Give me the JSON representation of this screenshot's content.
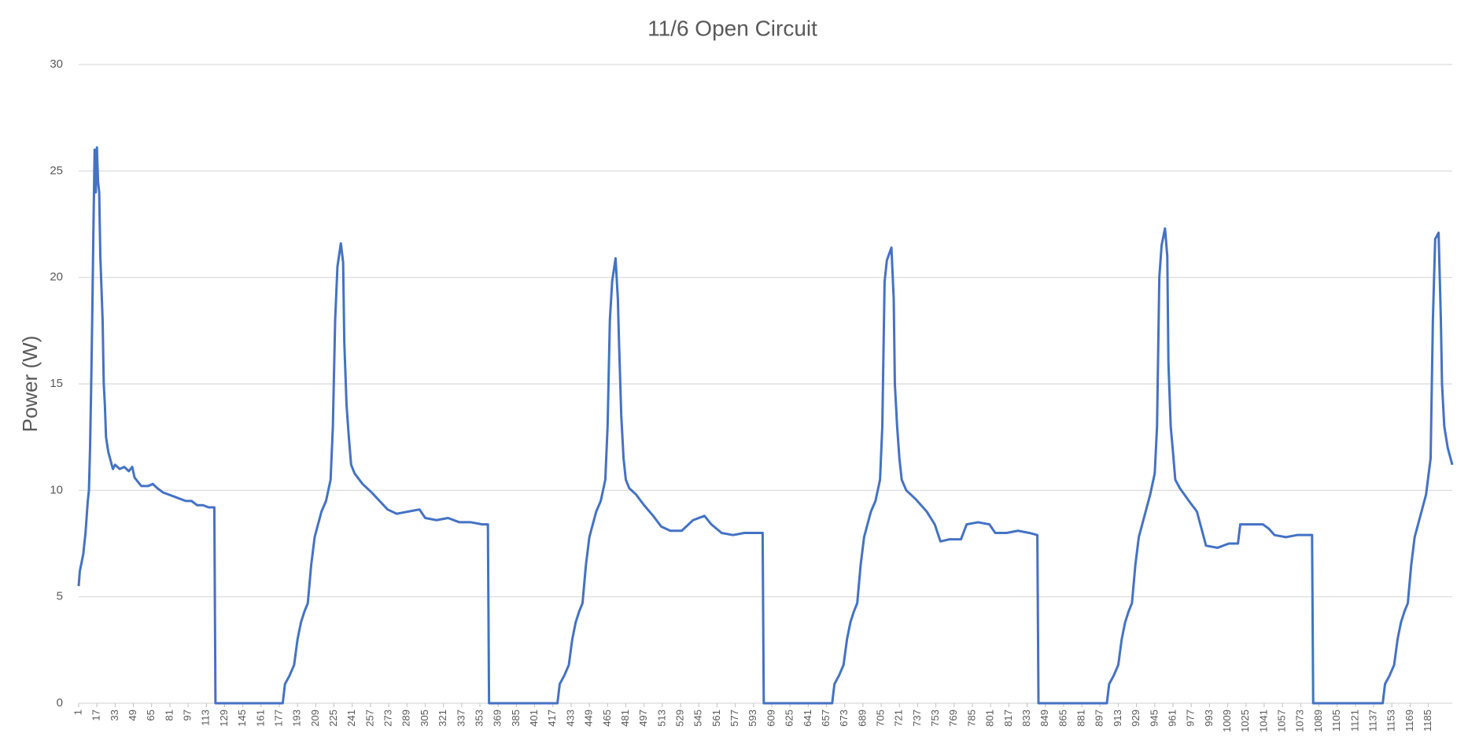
{
  "chart_data": {
    "type": "line",
    "title": "11/6 Open Circuit",
    "y_label": "Power (W)",
    "color": "#4472c4",
    "grid": true,
    "xlim": [
      1,
      1206
    ],
    "ylim": [
      0,
      30
    ],
    "yticks": [
      0,
      5,
      10,
      15,
      20,
      25,
      30
    ],
    "xticks": [
      1,
      17,
      33,
      49,
      65,
      81,
      97,
      113,
      129,
      145,
      161,
      177,
      193,
      209,
      225,
      241,
      257,
      273,
      289,
      305,
      321,
      337,
      353,
      369,
      385,
      401,
      417,
      433,
      449,
      465,
      481,
      497,
      513,
      529,
      545,
      561,
      577,
      593,
      609,
      625,
      641,
      657,
      673,
      689,
      705,
      721,
      737,
      753,
      769,
      785,
      801,
      817,
      833,
      849,
      865,
      881,
      897,
      913,
      929,
      945,
      961,
      977,
      993,
      1009,
      1025,
      1041,
      1057,
      1073,
      1089,
      1105,
      1121,
      1137,
      1153,
      1169,
      1185
    ],
    "x": [
      1,
      2,
      5,
      7,
      9,
      10,
      11,
      12,
      13,
      14,
      15,
      16,
      17,
      18,
      19,
      20,
      22,
      23,
      24,
      25,
      27,
      29,
      31,
      33,
      37,
      41,
      45,
      48,
      50,
      53,
      56,
      62,
      66,
      70,
      75,
      80,
      85,
      90,
      95,
      100,
      105,
      110,
      115,
      120,
      121,
      180,
      182,
      186,
      190,
      193,
      196,
      199,
      202,
      205,
      208,
      211,
      214,
      218,
      222,
      224,
      226,
      228,
      231,
      233,
      234,
      236,
      238,
      240,
      243,
      250,
      258,
      265,
      272,
      280,
      290,
      300,
      305,
      315,
      325,
      335,
      345,
      355,
      360,
      361,
      421,
      423,
      427,
      431,
      434,
      437,
      440,
      443,
      446,
      449,
      452,
      455,
      459,
      463,
      465,
      467,
      469,
      472,
      474,
      475,
      477,
      479,
      481,
      484,
      490,
      497,
      505,
      512,
      520,
      530,
      540,
      550,
      556,
      565,
      575,
      585,
      595,
      601,
      602,
      662,
      664,
      668,
      672,
      675,
      678,
      681,
      684,
      687,
      690,
      693,
      696,
      700,
      704,
      706,
      708,
      710,
      714,
      716,
      717,
      719,
      721,
      723,
      727,
      735,
      745,
      752,
      757,
      765,
      775,
      780,
      790,
      800,
      805,
      815,
      825,
      835,
      842,
      843,
      903,
      905,
      909,
      913,
      916,
      919,
      922,
      925,
      928,
      931,
      934,
      937,
      941,
      945,
      947,
      949,
      951,
      954,
      956,
      957,
      959,
      961,
      963,
      967,
      975,
      982,
      990,
      1000,
      1010,
      1018,
      1020,
      1030,
      1040,
      1045,
      1050,
      1060,
      1070,
      1083,
      1084,
      1145,
      1147,
      1151,
      1155,
      1158,
      1161,
      1164,
      1167,
      1170,
      1173,
      1176,
      1179,
      1183,
      1187,
      1189,
      1191,
      1194,
      1196,
      1197,
      1199,
      1202,
      1206
    ],
    "values": [
      5.5,
      6.2,
      7,
      8,
      9.5,
      10,
      12,
      15,
      18.5,
      22.5,
      26,
      24,
      26.1,
      24.5,
      24,
      21,
      18,
      15,
      14,
      12.5,
      11.8,
      11.4,
      11,
      11.2,
      11,
      11.1,
      10.9,
      11.1,
      10.6,
      10.4,
      10.2,
      10.2,
      10.3,
      10.1,
      9.9,
      9.8,
      9.7,
      9.6,
      9.5,
      9.5,
      9.3,
      9.3,
      9.2,
      9.2,
      0,
      0,
      0.9,
      1.3,
      1.8,
      3,
      3.8,
      4.3,
      4.7,
      6.5,
      7.8,
      8.4,
      9,
      9.5,
      10.5,
      13,
      18,
      20.5,
      21.6,
      20.7,
      17,
      14,
      12.5,
      11.2,
      10.8,
      10.3,
      9.9,
      9.5,
      9.1,
      8.9,
      9,
      9.1,
      8.7,
      8.6,
      8.7,
      8.5,
      8.5,
      8.4,
      8.4,
      0,
      0,
      0.9,
      1.3,
      1.8,
      3,
      3.8,
      4.3,
      4.7,
      6.5,
      7.8,
      8.4,
      9,
      9.5,
      10.5,
      13,
      18,
      19.8,
      20.9,
      19,
      17,
      13.5,
      11.5,
      10.5,
      10.1,
      9.8,
      9.3,
      8.8,
      8.3,
      8.1,
      8.1,
      8.6,
      8.8,
      8.4,
      8,
      7.9,
      8,
      8,
      8,
      0,
      0,
      0.9,
      1.3,
      1.8,
      3,
      3.8,
      4.3,
      4.7,
      6.5,
      7.8,
      8.4,
      9,
      9.5,
      10.5,
      13,
      19.8,
      20.8,
      21.4,
      19,
      15,
      13,
      11.5,
      10.5,
      10,
      9.6,
      9,
      8.4,
      7.6,
      7.7,
      7.7,
      8.4,
      8.5,
      8.4,
      8,
      8,
      8.1,
      8,
      7.9,
      0,
      0,
      0.9,
      1.3,
      1.8,
      3,
      3.8,
      4.3,
      4.7,
      6.5,
      7.8,
      8.4,
      9,
      9.8,
      10.8,
      13,
      20,
      21.5,
      22.3,
      21,
      16,
      13,
      11.8,
      10.5,
      10.1,
      9.5,
      9,
      7.4,
      7.3,
      7.5,
      7.5,
      8.4,
      8.4,
      8.4,
      8.2,
      7.9,
      7.8,
      7.9,
      7.9,
      0,
      0,
      0.9,
      1.3,
      1.8,
      3,
      3.8,
      4.3,
      4.7,
      6.5,
      7.8,
      8.4,
      9,
      9.8,
      11.5,
      18,
      21.8,
      22.1,
      18,
      15,
      13,
      12,
      11.2
    ]
  }
}
